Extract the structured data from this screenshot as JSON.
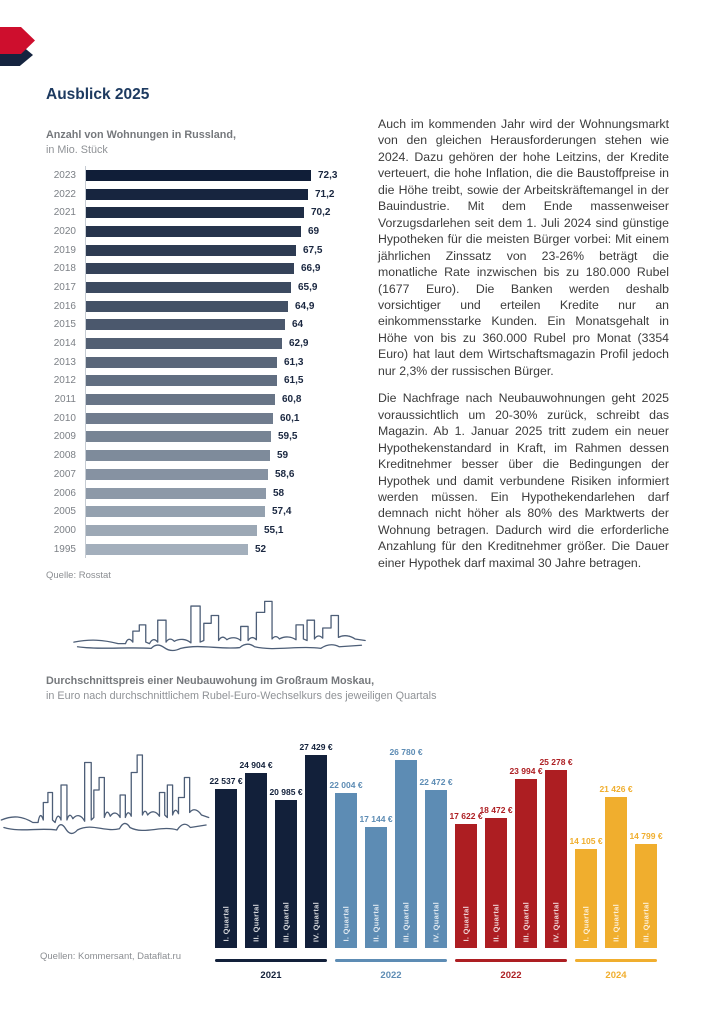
{
  "header": {
    "title": "Ausblick 2025"
  },
  "article": {
    "paragraphs": [
      "Auch im kommenden Jahr wird der Wohnungsmarkt von den gleichen Herausforderungen stehen wie 2024. Dazu gehören der hohe Leitzins, der Kredite verteuert, die hohe Inflation, die die Baustoffpreise in die Höhe treibt, sowie der Arbeitskräftemangel in der Bauindustrie. Mit dem Ende massenweiser Vorzugsdarlehen seit dem 1. Juli 2024 sind günstige Hypotheken für die meisten Bürger vorbei: Mit einem jährlichen Zinssatz von 23-26% beträgt die monatliche Rate inzwischen bis zu 180.000 Rubel (1677 Euro). Die Banken werden deshalb vorsichtiger und erteilen Kredite nur an einkommensstarke Kunden. Ein Monatsgehalt in Höhe von bis zu 360.000 Rubel pro Monat (3354 Euro) hat laut dem Wirtschaftsmagazin Profil jedoch nur 2,3% der russischen Bürger.",
      "Die Nachfrage nach Neubauwohnungen geht 2025 voraussichtlich um 20-30% zurück, schreibt das Magazin. Ab 1. Januar 2025 tritt zudem ein neuer Hypothekenstandard in Kraft, im Rahmen dessen Kreditnehmer besser über die Bedingungen der Hypothek und damit verbundene Risiken informiert werden müssen. Ein Hypothekendarlehen darf demnach nicht höher als 80% des Marktwerts der Wohnung betragen. Dadurch wird die erforderliche Anzahlung für den Kreditnehmer größer. Die Dauer einer Hypothek darf maximal 30 Jahre betragen."
    ]
  },
  "chart_data": [
    {
      "type": "bar",
      "orientation": "horizontal",
      "title": "Anzahl von Wohnungen in Russland,",
      "subtitle": "in Mio. Stück",
      "source": "Quelle: Rosstat",
      "xlim": [
        0,
        72.3
      ],
      "grid": false,
      "categories": [
        "2023",
        "2022",
        "2021",
        "2020",
        "2019",
        "2018",
        "2017",
        "2016",
        "2015",
        "2014",
        "2013",
        "2012",
        "2011",
        "2010",
        "2009",
        "2008",
        "2007",
        "2006",
        "2005",
        "2000",
        "1995"
      ],
      "values": [
        72.3,
        71.2,
        70.2,
        69,
        67.5,
        66.9,
        65.9,
        64.9,
        64,
        62.9,
        61.3,
        61.5,
        60.8,
        60.1,
        59.5,
        59,
        58.6,
        58,
        57.4,
        55.1,
        52
      ],
      "labels": [
        "72,3",
        "71,2",
        "70,2",
        "69",
        "67,5",
        "66,9",
        "65,9",
        "64,9",
        "64",
        "62,9",
        "61,3",
        "61,5",
        "60,8",
        "60,1",
        "59,5",
        "59",
        "58,6",
        "58",
        "57,4",
        "55,1",
        "52"
      ],
      "bar_color_start": "#101e38",
      "bar_color_end": "#a3afbc"
    },
    {
      "type": "bar",
      "orientation": "vertical",
      "title": "Durchschnittspreis einer Neubauwohung im Großraum Moskau,",
      "subtitle": "in Euro nach durchschnittlichem Rubel-Euro-Wechselkurs des jeweiligen Quartals",
      "source": "Quellen: Kommersant, Dataflat.ru",
      "ylim": [
        0,
        27429
      ],
      "grid": false,
      "legend_position": "below-as-year-underlines",
      "groups": [
        {
          "year": "2021",
          "color": "#12203a",
          "quarters": [
            "I. Quartal",
            "II. Quartal",
            "III. Quartal",
            "IV. Quartal"
          ],
          "values": [
            22537,
            24904,
            20985,
            27429
          ],
          "labels": [
            "22 537 €",
            "24 904 €",
            "20 985 €",
            "27 429 €"
          ]
        },
        {
          "year": "2022",
          "color": "#5d8cb4",
          "quarters": [
            "I. Quartal",
            "II. Quartal",
            "III. Quartal",
            "IV. Quartal"
          ],
          "values": [
            22004,
            17144,
            26780,
            22472
          ],
          "labels": [
            "22 004 €",
            "17 144 €",
            "26 780 €",
            "22 472 €"
          ]
        },
        {
          "year": "2022",
          "color": "#ad1e22",
          "quarters": [
            "I. Quartal",
            "II. Quartal",
            "III. Quartal",
            "IV. Quartal"
          ],
          "values": [
            17622,
            18472,
            23994,
            25278
          ],
          "labels": [
            "17 622 €",
            "18 472 €",
            "23 994 €",
            "25 278 €"
          ]
        },
        {
          "year": "2024",
          "color": "#f0ae2e",
          "quarters": [
            "I. Quartal",
            "II. Quartal",
            "III. Quartal"
          ],
          "values": [
            14105,
            21426,
            14799
          ],
          "labels": [
            "14 105 €",
            "21 426 €",
            "14 799 €"
          ]
        }
      ]
    }
  ]
}
